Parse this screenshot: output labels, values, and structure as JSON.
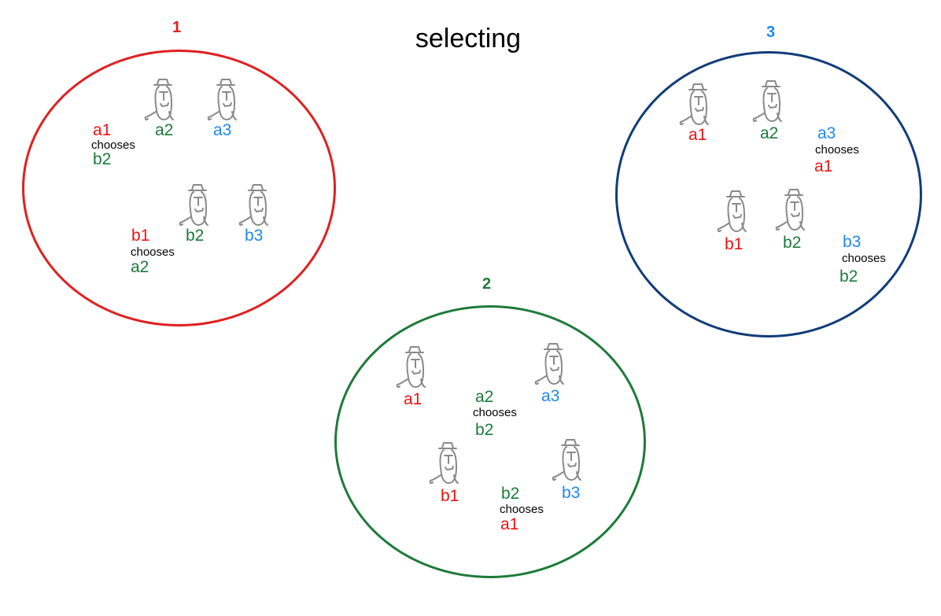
{
  "title": "selecting",
  "colors": {
    "a1": "#ee1111",
    "a2": "#1a7a3a",
    "a3": "#1e88f0",
    "b1": "#ee1111",
    "b2": "#1a7a3a",
    "b3": "#1e88f0",
    "group1": "#e02020",
    "group2": "#1e7a3a",
    "group3": "#123c78",
    "person": "#8a8a8a"
  },
  "groups": [
    {
      "label": "1",
      "agents": [
        "a2",
        "a3",
        "b1",
        "b2",
        "b3"
      ],
      "choices": [
        {
          "chooser": "a1",
          "verb": "chooses",
          "chosen": "b2"
        },
        {
          "chooser": "b1",
          "verb": "chooses",
          "chosen": "a2"
        }
      ]
    },
    {
      "label": "2",
      "agents": [
        "a1",
        "a3",
        "b1",
        "b3"
      ],
      "choices": [
        {
          "chooser": "a2",
          "verb": "chooses",
          "chosen": "b2"
        },
        {
          "chooser": "b2",
          "verb": "chooses",
          "chosen": "a1"
        }
      ]
    },
    {
      "label": "3",
      "agents": [
        "a1",
        "a2",
        "b1",
        "b2"
      ],
      "choices": [
        {
          "chooser": "a3",
          "verb": "chooses",
          "chosen": "a1"
        },
        {
          "chooser": "b3",
          "verb": "chooses",
          "chosen": "b2"
        }
      ]
    }
  ]
}
